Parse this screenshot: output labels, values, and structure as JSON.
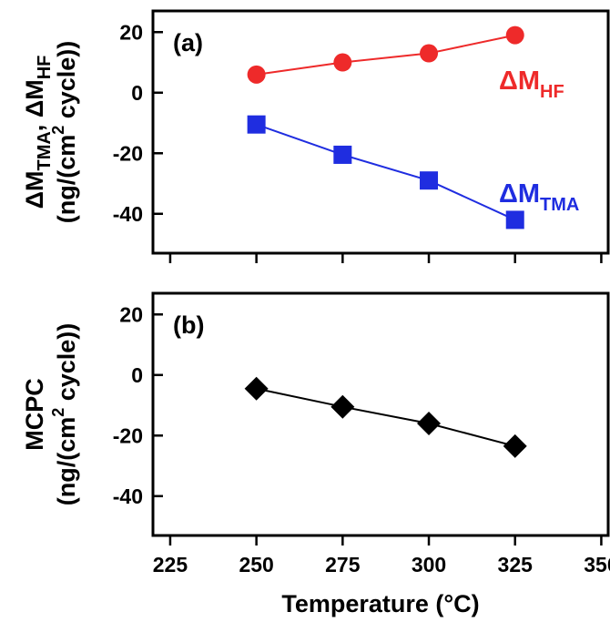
{
  "chart_data": [
    {
      "type": "scatter",
      "panel_label": "(a)",
      "xlim": [
        220,
        352
      ],
      "ylim": [
        -53,
        27
      ],
      "x_ticks": [
        225,
        250,
        275,
        300,
        325,
        350
      ],
      "y_ticks": [
        20,
        0,
        -20,
        -40
      ],
      "ylabel_line1": {
        "base1": "ΔM",
        "sub1": "TMA",
        "sep": ", ",
        "base2": "ΔM",
        "sub2": "HF"
      },
      "ylabel_line2": {
        "pre": "(ng/(cm",
        "sup": "2",
        "post": " cycle))"
      },
      "grid": false,
      "legend": "none",
      "series": [
        {
          "label_base": "ΔM",
          "label_sub": "HF",
          "color": "#ee2a2a",
          "marker": "circle",
          "x": [
            250,
            275,
            300,
            325
          ],
          "values": [
            6,
            10,
            13,
            19
          ]
        },
        {
          "label_base": "ΔM",
          "label_sub": "TMA",
          "color": "#1f2de0",
          "marker": "square",
          "x": [
            250,
            275,
            300,
            325
          ],
          "values": [
            -10.5,
            -20.5,
            -29,
            -42
          ]
        }
      ]
    },
    {
      "type": "scatter",
      "panel_label": "(b)",
      "xlim": [
        220,
        352
      ],
      "ylim": [
        -53,
        27
      ],
      "x_ticks": [
        225,
        250,
        275,
        300,
        325,
        350
      ],
      "x_tick_labels": [
        "225",
        "250",
        "275",
        "300",
        "325",
        "350"
      ],
      "y_ticks": [
        20,
        0,
        -20,
        -40
      ],
      "ylabel_line1": {
        "text": "MCPC"
      },
      "ylabel_line2": {
        "pre": "(ng/(cm",
        "sup": "2",
        "post": " cycle))"
      },
      "xlabel": "Temperature (°C)",
      "grid": false,
      "legend": "none",
      "series": [
        {
          "color": "#000000",
          "marker": "diamond",
          "x": [
            250,
            275,
            300,
            325
          ],
          "values": [
            -4.5,
            -10.5,
            -16,
            -23.5
          ]
        }
      ]
    }
  ]
}
